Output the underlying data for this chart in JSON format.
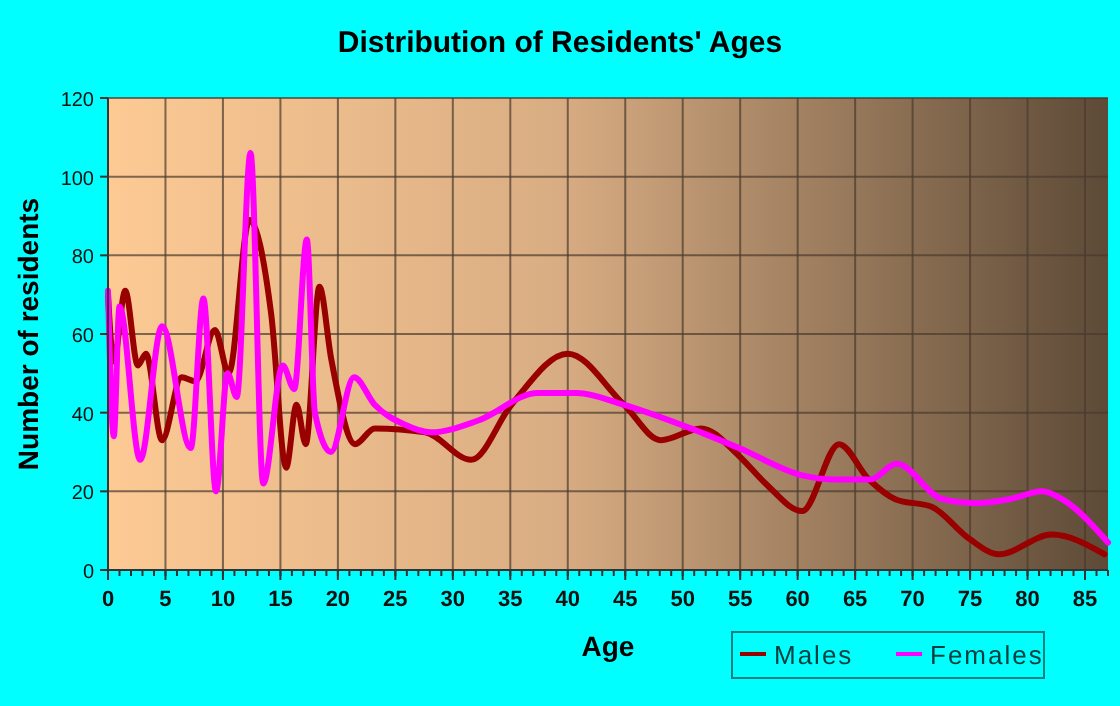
{
  "chart_data": {
    "type": "line",
    "title": "Distribution of Residents' Ages",
    "xlabel": "Age",
    "ylabel": "Number of residents",
    "xlim": [
      0,
      87
    ],
    "xticks": [
      0,
      5,
      10,
      15,
      20,
      25,
      30,
      35,
      40,
      45,
      50,
      55,
      60,
      65,
      70,
      75,
      80,
      85
    ],
    "ylim": [
      0,
      120
    ],
    "yticks": [
      0,
      20,
      40,
      60,
      80,
      100,
      120
    ],
    "grid": true,
    "legend": "bottom",
    "marker": "none",
    "line_style": "solid",
    "series": [
      {
        "name": "Males",
        "color": "#990000",
        "x": [
          0,
          0.5,
          1.5,
          2.6,
          3.3,
          4.7,
          6.4,
          7.6,
          9.3,
          10.5,
          12.3,
          14.2,
          15.5,
          16.4,
          17.2,
          18.4,
          19.4,
          21.5,
          23.2,
          27.6,
          31.6,
          35.1,
          40,
          44.9,
          48.1,
          51.6,
          54.9,
          57.2,
          60.4,
          63.6,
          66.2,
          68.5,
          71.7,
          74.9,
          77.5,
          82.1,
          86.7
        ],
        "values": [
          70,
          53,
          71,
          52,
          55,
          33,
          49,
          48,
          61,
          50,
          89,
          65,
          26,
          42,
          32,
          72,
          54,
          32,
          36,
          35,
          28,
          42,
          55,
          42,
          33,
          36,
          29,
          22,
          15,
          32,
          23,
          18,
          16,
          8,
          4,
          9,
          4
        ]
      },
      {
        "name": "Females",
        "color": "#ff00ff",
        "x": [
          0,
          0.5,
          1,
          2.8,
          4.7,
          7.2,
          8.3,
          9.4,
          10.4,
          11.2,
          12.4,
          13.5,
          15.2,
          16.2,
          17.3,
          18,
          19.4,
          21.4,
          23.2,
          25.8,
          28.1,
          32.2,
          37.4,
          40.8,
          44.9,
          50.7,
          54.9,
          60.5,
          63.4,
          66.3,
          68.6,
          72.6,
          75.5,
          78.4,
          81.3,
          83,
          87
        ],
        "values": [
          71,
          34,
          67,
          28,
          62,
          31,
          69,
          20,
          50,
          44,
          106,
          22,
          52,
          46,
          84,
          40,
          30,
          49,
          42,
          37,
          35,
          38,
          45,
          45,
          42,
          36,
          31,
          24,
          23,
          23,
          27,
          18,
          17,
          18,
          20,
          18,
          7
        ]
      }
    ]
  }
}
